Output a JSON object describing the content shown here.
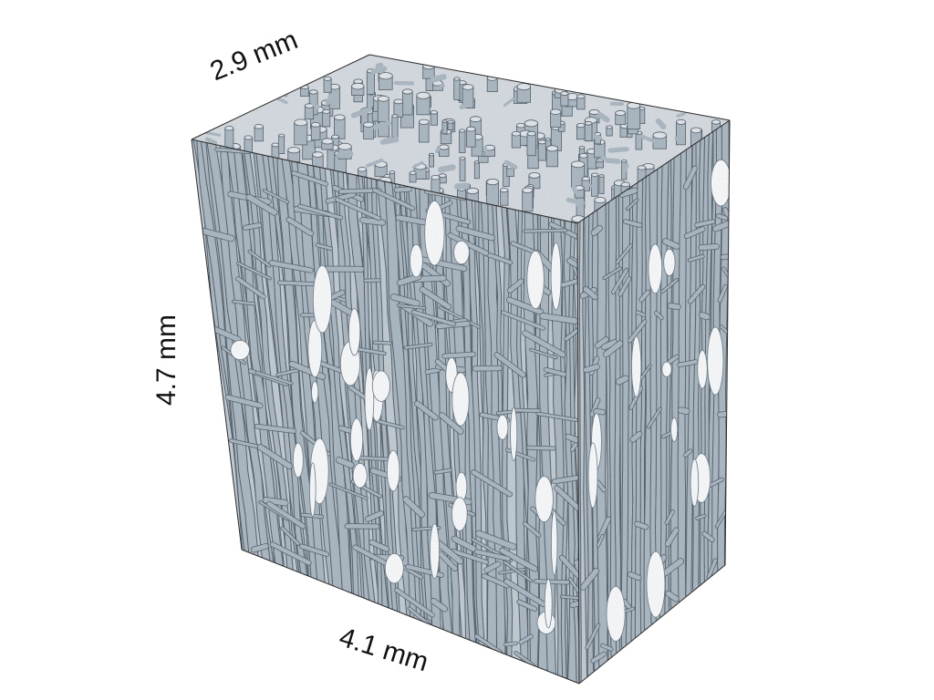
{
  "dimensions": {
    "depth": "2.9 mm",
    "height": "4.7 mm",
    "width": "4.1 mm"
  },
  "colors": {
    "tissue_fill": "#aab6bf",
    "tissue_dark": "#5f6f7a",
    "tissue_outline": "#3e4a54",
    "background": "#ffffff",
    "box_edge": "#2a2a2a"
  }
}
